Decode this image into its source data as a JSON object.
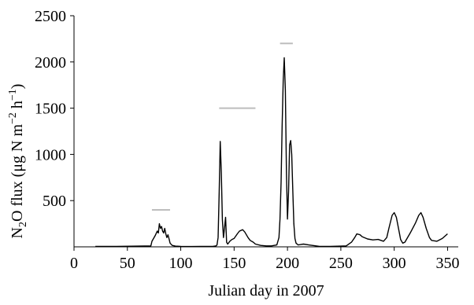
{
  "chart_data": {
    "type": "line",
    "title": "",
    "xlabel": "Julian day in 2007",
    "ylabel": "N2O flux (μg N m−2 h−1)",
    "ylabel_parts": {
      "a": "N",
      "b": "2",
      "c": "O flux (μg N m",
      "d": "−2",
      "e": " h",
      "f": "−1",
      "g": ")"
    },
    "xlim": [
      0,
      360
    ],
    "ylim": [
      0,
      2500
    ],
    "xticks": [
      0,
      50,
      100,
      150,
      200,
      250,
      300,
      350
    ],
    "yticks": [
      500,
      1000,
      1500,
      2000,
      2500
    ],
    "xtick_labels": [
      "0",
      "50",
      "100",
      "150",
      "200",
      "250",
      "300",
      "350"
    ],
    "ytick_labels": [
      "500",
      "1000",
      "1500",
      "2000",
      "2500"
    ],
    "grid": false,
    "line_color": "#000000",
    "bar_color": "#bdbdbd",
    "series": [
      {
        "x": [
          20,
          40,
          60,
          72,
          73,
          74,
          76,
          78,
          79,
          80,
          81,
          82,
          83,
          84,
          85,
          86,
          87,
          88,
          89,
          90,
          92,
          95,
          100,
          110,
          120,
          130,
          133,
          134,
          135,
          136,
          137,
          138,
          139,
          140,
          141,
          142,
          143,
          144,
          146,
          148,
          150,
          153,
          155,
          158,
          160,
          163,
          165,
          168,
          170,
          175,
          180,
          185,
          190,
          192,
          193,
          194,
          195,
          196,
          197,
          198,
          199,
          200,
          201,
          202,
          203,
          204,
          205,
          206,
          207,
          208,
          210,
          215,
          220,
          230,
          240,
          250,
          255,
          260,
          263,
          265,
          268,
          270,
          275,
          280,
          285,
          290,
          293,
          295,
          298,
          300,
          302,
          304,
          306,
          308,
          310,
          315,
          320,
          323,
          325,
          327,
          330,
          333,
          335,
          340,
          345,
          350
        ],
        "y": [
          5,
          5,
          8,
          10,
          60,
          80,
          120,
          170,
          150,
          250,
          200,
          220,
          170,
          150,
          200,
          140,
          100,
          130,
          90,
          40,
          15,
          8,
          5,
          3,
          5,
          5,
          10,
          20,
          100,
          600,
          1140,
          800,
          300,
          100,
          200,
          320,
          50,
          30,
          60,
          80,
          90,
          140,
          170,
          185,
          160,
          100,
          70,
          50,
          30,
          15,
          10,
          10,
          20,
          100,
          300,
          700,
          1300,
          1800,
          2045,
          1700,
          800,
          300,
          600,
          1100,
          1150,
          1000,
          600,
          250,
          90,
          40,
          20,
          30,
          20,
          5,
          5,
          8,
          10,
          50,
          100,
          140,
          130,
          110,
          85,
          75,
          80,
          60,
          100,
          200,
          340,
          370,
          320,
          200,
          80,
          40,
          50,
          150,
          260,
          340,
          370,
          320,
          200,
          100,
          70,
          60,
          90,
          140
        ]
      }
    ],
    "annotation_bars": [
      {
        "x_start": 73,
        "x_end": 90,
        "y": 400
      },
      {
        "x_start": 136,
        "x_end": 170,
        "y": 1500
      },
      {
        "x_start": 193,
        "x_end": 205,
        "y": 2200
      }
    ]
  }
}
